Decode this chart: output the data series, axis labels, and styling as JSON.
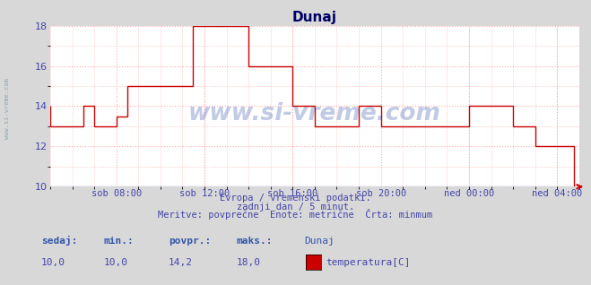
{
  "title": "Dunaj",
  "line_color": "#cc0000",
  "bg_color": "#d8d8d8",
  "plot_bg_color": "#ffffff",
  "grid_color": "#ffaaaa",
  "grid_style": ":",
  "ylim": [
    10,
    18
  ],
  "yticks": [
    10,
    12,
    14,
    16,
    18
  ],
  "tick_color": "#4444aa",
  "title_color": "#000066",
  "watermark_text": "www.si-vreme.com",
  "watermark_color": "#3355aa",
  "watermark_alpha": 0.3,
  "subtitle_lines": [
    "Evropa / vremenski podatki.",
    "zadnji dan / 5 minut.",
    "Meritve: povprečne  Enote: metrične  Črta: minmum"
  ],
  "legend_labels": [
    "sedaj:",
    "min.:",
    "povpr.:",
    "maks.:",
    "Dunaj"
  ],
  "legend_values": [
    "10,0",
    "10,0",
    "14,2",
    "18,0"
  ],
  "legend_series": "temperatura[C]",
  "legend_color": "#cc0000",
  "xtick_labels": [
    "sob 08:00",
    "sob 12:00",
    "sob 16:00",
    "sob 20:00",
    "ned 00:00",
    "ned 04:00"
  ],
  "xtick_positions": [
    0.125,
    0.292,
    0.458,
    0.625,
    0.792,
    0.958
  ],
  "x_data": [
    0.0,
    0.0,
    0.062,
    0.062,
    0.083,
    0.083,
    0.125,
    0.125,
    0.145,
    0.145,
    0.208,
    0.208,
    0.255,
    0.255,
    0.27,
    0.27,
    0.375,
    0.375,
    0.458,
    0.458,
    0.5,
    0.5,
    0.583,
    0.583,
    0.625,
    0.625,
    0.708,
    0.708,
    0.792,
    0.792,
    0.875,
    0.875,
    0.885,
    0.885,
    0.917,
    0.917,
    0.97,
    0.97,
    0.99,
    0.99,
    1.0
  ],
  "y_data": [
    14.0,
    13.0,
    13.0,
    14.0,
    14.0,
    13.0,
    13.0,
    13.5,
    13.5,
    15.0,
    15.0,
    15.0,
    15.0,
    15.0,
    15.0,
    18.0,
    18.0,
    16.0,
    16.0,
    14.0,
    14.0,
    13.0,
    13.0,
    14.0,
    14.0,
    13.0,
    13.0,
    13.0,
    13.0,
    14.0,
    14.0,
    13.0,
    13.0,
    13.0,
    13.0,
    12.0,
    12.0,
    12.0,
    12.0,
    10.0,
    10.0
  ],
  "left_label_color": "#7799aa",
  "left_label_text": "www.si-vreme.com",
  "arrow_color": "#cc0000",
  "bottom_arrow_color": "#0000cc"
}
